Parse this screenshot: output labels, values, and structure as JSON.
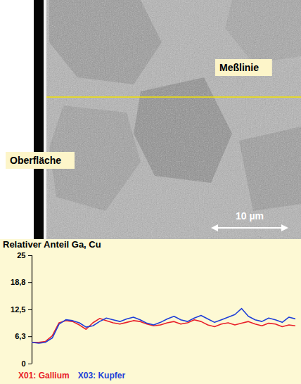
{
  "chart_data": {
    "type": "line",
    "title": "Relativer Anteil Ga, Cu",
    "annotations": [
      "Meßlinie",
      "Oberfläche",
      "10 µm"
    ],
    "x": [
      0,
      1,
      2,
      3,
      4,
      5,
      6,
      7,
      8,
      9,
      10,
      11,
      12,
      13,
      14,
      15,
      16,
      17,
      18,
      19,
      20,
      21,
      22,
      23,
      24,
      25,
      26,
      27,
      28,
      29,
      30,
      31,
      32,
      33,
      34,
      35,
      36,
      37,
      38,
      39
    ],
    "xlim": [
      0,
      39
    ],
    "ylim": [
      0,
      25
    ],
    "yticks": [
      0,
      {
        "value": 6.3,
        "label": "6,3"
      },
      {
        "value": 12.5,
        "label": "12,5"
      },
      {
        "value": 18.8,
        "label": "18,8"
      },
      25
    ],
    "tick_labels": "y",
    "legend": "bottom",
    "series": [
      {
        "name": "X01: Gallium",
        "color": "#e8202a",
        "values": [
          5,
          5,
          5.2,
          6.5,
          9.5,
          10,
          9.8,
          9,
          8,
          9.5,
          10.5,
          10,
          9.5,
          9.2,
          9.6,
          10,
          9.8,
          9.2,
          8.8,
          9,
          9.5,
          9.8,
          9.2,
          9.5,
          10.2,
          9.8,
          9,
          8.6,
          9.2,
          9.5,
          9,
          9.4,
          9.8,
          9.2,
          8.8,
          9.4,
          9.2,
          8.6,
          9,
          8.8
        ]
      },
      {
        "name": "X03: Kupfer",
        "color": "#1f3fd8",
        "values": [
          5,
          4.8,
          5,
          6,
          9.2,
          10.2,
          10,
          9.5,
          8.5,
          8.8,
          9.8,
          10.6,
          10.2,
          9.8,
          10.4,
          10.8,
          10.2,
          9.4,
          9,
          9.6,
          10.4,
          11,
          10.2,
          9.8,
          10.6,
          11.2,
          10.4,
          9.6,
          10.2,
          10.8,
          11.4,
          12.8,
          11,
          10.2,
          9.8,
          10.6,
          10.2,
          9.6,
          10.8,
          10.4
        ]
      }
    ]
  }
}
